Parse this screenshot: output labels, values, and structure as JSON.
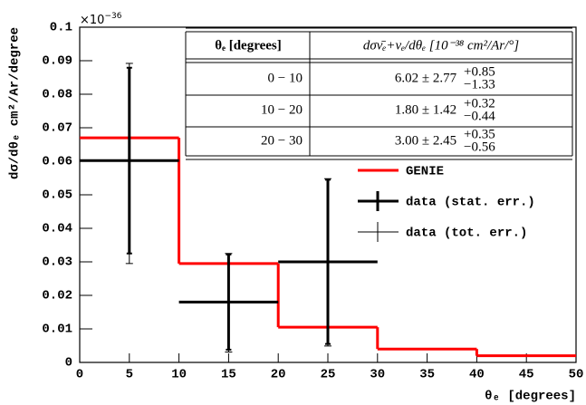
{
  "chart_data": {
    "type": "histogram",
    "x_label": "θₑ [degrees]",
    "y_label": "dσ/dθₑ cm²/Ar/degree",
    "y_multiplier_base": "×10",
    "y_multiplier_exp": "−36",
    "xlim": [
      0,
      50
    ],
    "xticks": [
      0,
      5,
      10,
      15,
      20,
      25,
      30,
      35,
      40,
      45,
      50
    ],
    "ylim": [
      0,
      0.1
    ],
    "yticks": [
      0,
      0.01,
      0.02,
      0.03,
      0.04,
      0.05,
      0.06,
      0.07,
      0.08,
      0.09,
      0.1
    ],
    "genie": {
      "name": "GENIE",
      "color": "#ff0000",
      "bins": [
        0,
        10,
        20,
        30,
        40,
        50
      ],
      "values": [
        0.067,
        0.0295,
        0.0105,
        0.004,
        0.002
      ]
    },
    "data": {
      "color": "#000000",
      "stat_name": "data (stat. err.)",
      "tot_name": "data (tot. err.)",
      "x": [
        5,
        15,
        25
      ],
      "xerr": [
        5,
        5,
        5
      ],
      "values": [
        0.0602,
        0.018,
        0.03
      ],
      "stat_err": [
        0.0277,
        0.0142,
        0.0245
      ],
      "tot_err_up": [
        0.029,
        0.0145,
        0.0248
      ],
      "tot_err_down": [
        0.0307,
        0.0149,
        0.0251
      ]
    },
    "table": {
      "headers": [
        "θₑ [degrees]",
        "dσν̄ₑ+νₑ/dθₑ [10⁻³⁸ cm²/Ar/°]"
      ],
      "rows": [
        {
          "range": "0 − 10",
          "value": "6.02 ± 2.77",
          "up": "+0.85",
          "down": "−1.33"
        },
        {
          "range": "10 − 20",
          "value": "1.80 ± 1.42",
          "up": "+0.32",
          "down": "−0.44"
        },
        {
          "range": "20 − 30",
          "value": "3.00 ± 2.45",
          "up": "+0.35",
          "down": "−0.56"
        }
      ]
    }
  }
}
